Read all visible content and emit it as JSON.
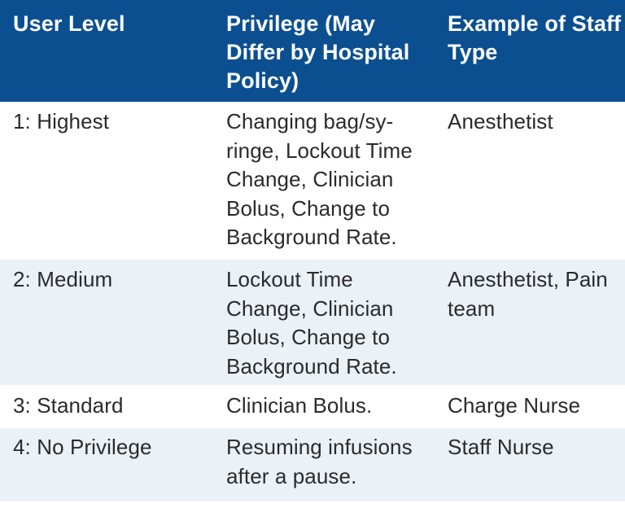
{
  "table": {
    "headers": [
      "User Level",
      "Privilege (May Differ by Hospital Policy)",
      "Example of Staff Type"
    ],
    "rows": [
      {
        "level": "1: Highest",
        "privilege": "Changing bag/sy-ringe, Lockout Time Change, Clinician Bolus, Change to Background Rate.",
        "staff": "Anesthetist"
      },
      {
        "level": "2: Medium",
        "privilege": "Lockout Time Change, Clinician Bolus, Change to Background Rate.",
        "staff": "Anesthetist, Pain team"
      },
      {
        "level": "3: Standard",
        "privilege": "Clinician Bolus.",
        "staff": "Charge Nurse"
      },
      {
        "level": "4: No Privilege",
        "privilege": "Resuming infusions after a pause.",
        "staff": "Staff Nurse"
      }
    ]
  }
}
